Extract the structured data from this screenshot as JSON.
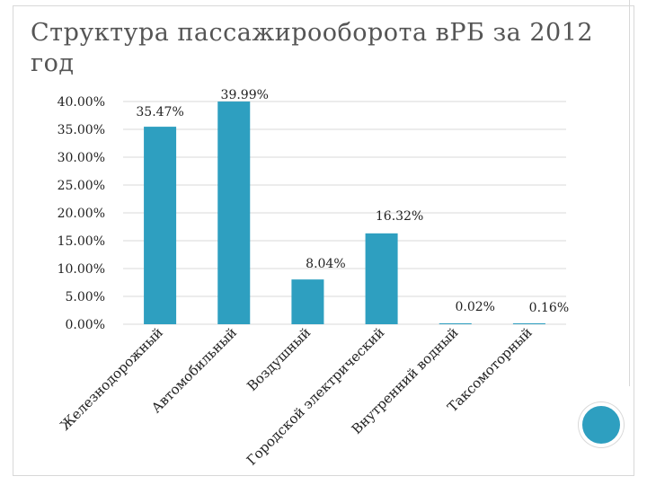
{
  "title": "Структура пассажирооборота вРБ за 2012 год",
  "colors": {
    "bar": "#2e9fc0",
    "grid": "#d9d9d9",
    "text": "#222222",
    "accent": "#2e9fc0"
  },
  "chart_data": {
    "type": "bar",
    "title": "",
    "xlabel": "",
    "ylabel": "",
    "categories": [
      "Железнодорожный",
      "Автомобильный",
      "Воздушный",
      "Городской электрический",
      "Внутренний водный",
      "Таксомоторный"
    ],
    "values": [
      35.47,
      39.99,
      8.04,
      16.32,
      0.02,
      0.16
    ],
    "data_labels": [
      "35.47%",
      "39.99%",
      "8.04%",
      "16.32%",
      "0.02%",
      "0.16%"
    ],
    "ylim": [
      0,
      40
    ],
    "yticks": [
      "0.00%",
      "5.00%",
      "10.00%",
      "15.00%",
      "20.00%",
      "25.00%",
      "30.00%",
      "35.00%",
      "40.00%"
    ],
    "grid": true,
    "legend": "none"
  }
}
